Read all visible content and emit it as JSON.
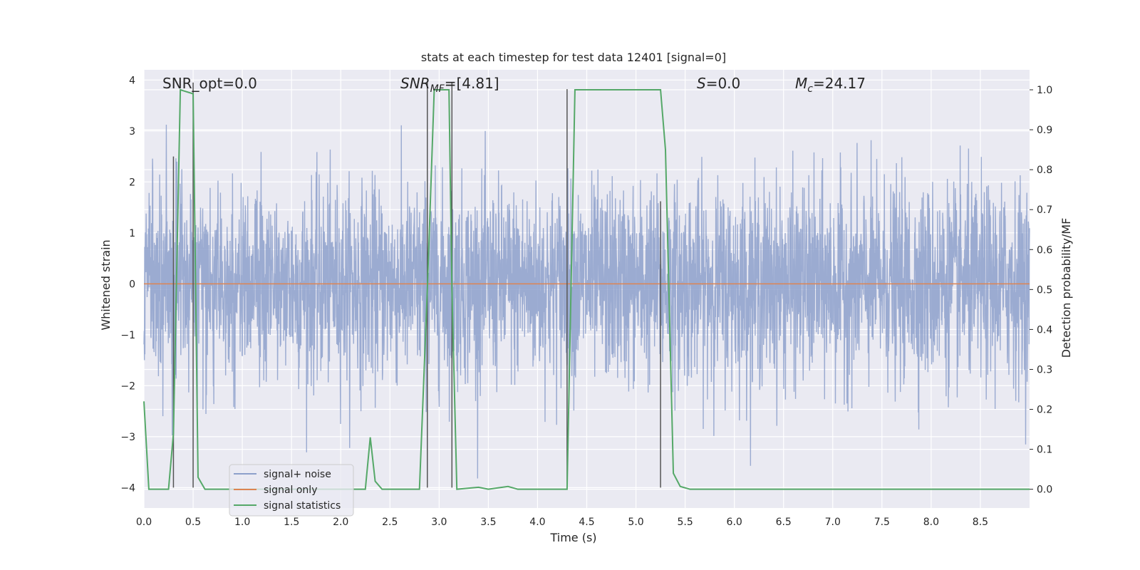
{
  "chart_data": {
    "type": "line",
    "title": "stats at each timestep for test data 12401 [signal=0]",
    "xlabel": "Time (s)",
    "ylabel_left": "Whitened strain",
    "ylabel_right": "Detection probability/MF",
    "xlim": [
      0.0,
      9.0
    ],
    "ylim_left": [
      -4.4,
      4.2
    ],
    "ylim_right": [
      -0.047,
      1.05
    ],
    "x_ticks": [
      "0.0",
      "0.5",
      "1.0",
      "1.5",
      "2.0",
      "2.5",
      "3.0",
      "3.5",
      "4.0",
      "4.5",
      "5.0",
      "5.5",
      "6.0",
      "6.5",
      "7.0",
      "7.5",
      "8.0",
      "8.5"
    ],
    "y_left_ticks": [
      "−4",
      "−3",
      "−2",
      "−1",
      "0",
      "1",
      "2",
      "3",
      "4"
    ],
    "y_right_ticks": [
      "0.0",
      "0.1",
      "0.2",
      "0.3",
      "0.4",
      "0.5",
      "0.6",
      "0.7",
      "0.8",
      "0.9",
      "1.0"
    ],
    "grid": true,
    "legend_position": "lower-left",
    "annotations": {
      "snr_opt": "SNR_opt=0.0",
      "snr_mf_main": "SNR",
      "snr_mf_sub": "MF",
      "snr_mf_value": "=[4.81]",
      "s_main": "S",
      "s_value": "=0.0",
      "mc_main": "M",
      "mc_sub": "c",
      "mc_value": "=24.17"
    },
    "series": [
      {
        "name": "signal+ noise",
        "color": "#8da0cb",
        "description": "whitened noise strain, dense random samples roughly within -3.9 to 3.7",
        "envelope": {
          "typical_abs_max": 2.3,
          "peak_max": 3.7,
          "peak_min": -3.95
        }
      },
      {
        "name": "signal only",
        "color": "#dd8452",
        "x": [
          0.0,
          9.0
        ],
        "y": [
          0.0,
          0.0
        ]
      },
      {
        "name": "signal statistics",
        "color": "#55a868",
        "axis": "right",
        "x": [
          0.0,
          0.05,
          0.25,
          0.3,
          0.37,
          0.5,
          0.55,
          0.62,
          2.25,
          2.3,
          2.35,
          2.42,
          2.8,
          2.88,
          2.95,
          3.1,
          3.13,
          3.18,
          3.4,
          3.5,
          3.7,
          3.8,
          4.3,
          4.38,
          5.25,
          5.3,
          5.38,
          5.45,
          5.55,
          9.0
        ],
        "y": [
          0.22,
          0.0,
          0.0,
          0.14,
          1.0,
          0.99,
          0.03,
          0.0,
          0.0,
          0.13,
          0.02,
          0.0,
          0.0,
          0.5,
          1.0,
          1.0,
          0.5,
          0.0,
          0.005,
          0.0,
          0.007,
          0.0,
          0.0,
          1.0,
          1.0,
          0.85,
          0.04,
          0.007,
          0.0,
          0.0
        ]
      }
    ],
    "vertical_markers": [
      {
        "x": 0.3,
        "y_top": 2.5
      },
      {
        "x": 0.5,
        "y_top": 3.95
      },
      {
        "x": 2.88,
        "y_top": 3.95
      },
      {
        "x": 3.13,
        "y_top": 3.95
      },
      {
        "x": 4.3,
        "y_top": 3.82
      },
      {
        "x": 5.25,
        "y_top": 1.62
      }
    ],
    "colors": {
      "plot_background": "#eaeaf2",
      "grid": "#ffffff",
      "marker_line": "#555555"
    }
  }
}
